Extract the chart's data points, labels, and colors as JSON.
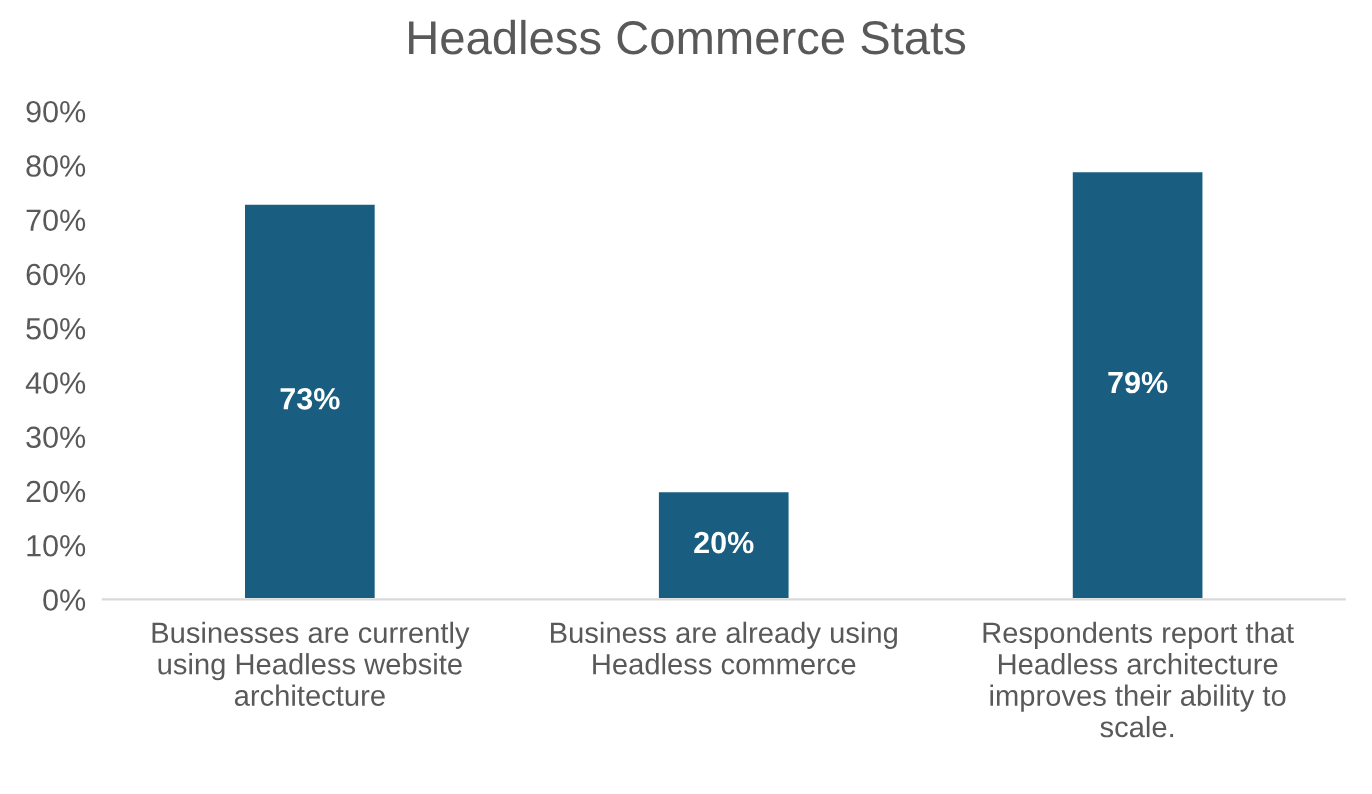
{
  "chart_data": {
    "type": "bar",
    "title": "Headless Commerce Stats",
    "categories": [
      "Businesses are currently\nusing Headless website\narchitecture",
      "Business are already using\nHeadless commerce",
      "Respondents report that\nHeadless architecture\nimproves their ability to\nscale."
    ],
    "values": [
      73,
      20,
      79
    ],
    "value_labels": [
      "73%",
      "20%",
      "79%"
    ],
    "color": "#195e80",
    "ylim": [
      0,
      90
    ],
    "yticks": [
      {
        "value": 0,
        "label": "0%"
      },
      {
        "value": 10,
        "label": "10%"
      },
      {
        "value": 20,
        "label": "20%"
      },
      {
        "value": 30,
        "label": "30%"
      },
      {
        "value": 40,
        "label": "40%"
      },
      {
        "value": 50,
        "label": "50%"
      },
      {
        "value": 60,
        "label": "60%"
      },
      {
        "value": 70,
        "label": "70%"
      },
      {
        "value": 80,
        "label": "80%"
      },
      {
        "value": 90,
        "label": "90%"
      }
    ],
    "grid": false,
    "legend": false
  }
}
